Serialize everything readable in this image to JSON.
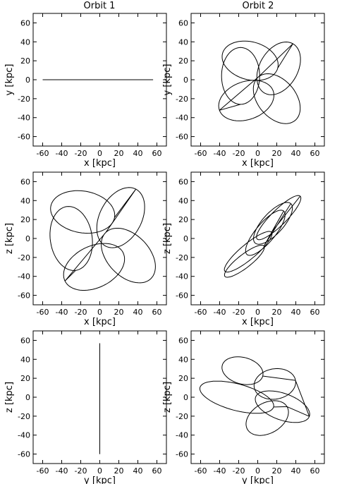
{
  "figure": {
    "column_titles": [
      "Orbit 1",
      "Orbit 2"
    ],
    "line_color": "#000000"
  },
  "chart_data": [
    {
      "type": "line",
      "panel": "orbit-1-xy",
      "orbit": "Orbit 1",
      "xlabel": "x [kpc]",
      "ylabel": "y [kpc]",
      "xlim": [
        -70,
        70
      ],
      "ylim": [
        -70,
        70
      ],
      "grid": false,
      "ticks": [
        -60,
        -40,
        -20,
        0,
        20,
        40,
        60
      ],
      "series": [
        {
          "x": [
            -60,
            56
          ],
          "y": [
            0,
            0
          ]
        }
      ]
    },
    {
      "type": "line",
      "panel": "orbit-2-xy",
      "orbit": "Orbit 2",
      "xlabel": "x [kpc]",
      "ylabel": "y [kpc]",
      "xlim": [
        -70,
        70
      ],
      "ylim": [
        -70,
        70
      ],
      "grid": false,
      "ticks": [
        -60,
        -40,
        -20,
        0,
        20,
        40,
        60
      ],
      "rosette": {
        "lobes": [
          {
            "cx": -8,
            "cy": 20,
            "a": 30,
            "b": 20,
            "angle": -15
          },
          {
            "cx": 22,
            "cy": 12,
            "a": 30,
            "b": 20,
            "angle": 60
          },
          {
            "cx": 20,
            "cy": -20,
            "a": 30,
            "b": 20,
            "angle": 130
          },
          {
            "cx": -12,
            "cy": -22,
            "a": 30,
            "b": 20,
            "angle": 200
          },
          {
            "cx": -18,
            "cy": 4,
            "a": 30,
            "b": 20,
            "angle": 270
          }
        ]
      }
    },
    {
      "type": "line",
      "panel": "orbit-1-xz",
      "orbit": "Orbit 1",
      "xlabel": "x [kpc]",
      "ylabel": "z [kpc]",
      "xlim": [
        -70,
        70
      ],
      "ylim": [
        -70,
        70
      ],
      "grid": false,
      "ticks": [
        -60,
        -40,
        -20,
        0,
        20,
        40,
        60
      ],
      "rosette": {
        "lobes": [
          {
            "cx": -18,
            "cy": 28,
            "a": 34,
            "b": 22,
            "angle": -10
          },
          {
            "cx": 22,
            "cy": 22,
            "a": 34,
            "b": 22,
            "angle": 62
          },
          {
            "cx": 30,
            "cy": -18,
            "a": 34,
            "b": 22,
            "angle": 134
          },
          {
            "cx": -6,
            "cy": -30,
            "a": 34,
            "b": 22,
            "angle": 206
          },
          {
            "cx": -30,
            "cy": 0,
            "a": 34,
            "b": 22,
            "angle": 278
          }
        ]
      }
    },
    {
      "type": "line",
      "panel": "orbit-2-xz",
      "orbit": "Orbit 2",
      "xlabel": "x [kpc]",
      "ylabel": "z [kpc]",
      "xlim": [
        -70,
        70
      ],
      "ylim": [
        -70,
        70
      ],
      "grid": false,
      "ticks": [
        -60,
        -40,
        -20,
        0,
        20,
        40,
        60
      ],
      "rosette": {
        "lobes": [
          {
            "cx": 22,
            "cy": 22,
            "a": 32,
            "b": 8,
            "angle": 45
          },
          {
            "cx": -10,
            "cy": -14,
            "a": 32,
            "b": 8,
            "angle": 40
          },
          {
            "cx": 8,
            "cy": 6,
            "a": 30,
            "b": 10,
            "angle": 50
          },
          {
            "cx": -14,
            "cy": -24,
            "a": 26,
            "b": 7,
            "angle": 38
          },
          {
            "cx": 16,
            "cy": 16,
            "a": 28,
            "b": 11,
            "angle": 48
          }
        ]
      }
    },
    {
      "type": "line",
      "panel": "orbit-1-yz",
      "orbit": "Orbit 1",
      "xlabel": "y [kpc]",
      "ylabel": "z [kpc]",
      "xlim": [
        -70,
        70
      ],
      "ylim": [
        -70,
        70
      ],
      "grid": false,
      "ticks": [
        -60,
        -40,
        -20,
        0,
        20,
        40,
        60
      ],
      "series": [
        {
          "x": [
            0,
            0
          ],
          "y": [
            -60,
            57
          ]
        }
      ]
    },
    {
      "type": "line",
      "panel": "orbit-2-yz",
      "orbit": "Orbit 2",
      "xlabel": "y [kpc]",
      "ylabel": "z [kpc]",
      "xlim": [
        -70,
        70
      ],
      "ylim": [
        -70,
        70
      ],
      "grid": false,
      "ticks": [
        -60,
        -40,
        -20,
        0,
        20,
        40,
        60
      ],
      "rosette": {
        "lobes": [
          {
            "cx": -16,
            "cy": 28,
            "a": 22,
            "b": 14,
            "angle": -15
          },
          {
            "cx": 18,
            "cy": 14,
            "a": 22,
            "b": 16,
            "angle": 10
          },
          {
            "cx": 26,
            "cy": -10,
            "a": 30,
            "b": 14,
            "angle": -20
          },
          {
            "cx": 10,
            "cy": -22,
            "a": 24,
            "b": 16,
            "angle": 30
          },
          {
            "cx": -22,
            "cy": 0,
            "a": 40,
            "b": 14,
            "angle": -15
          }
        ]
      }
    }
  ]
}
